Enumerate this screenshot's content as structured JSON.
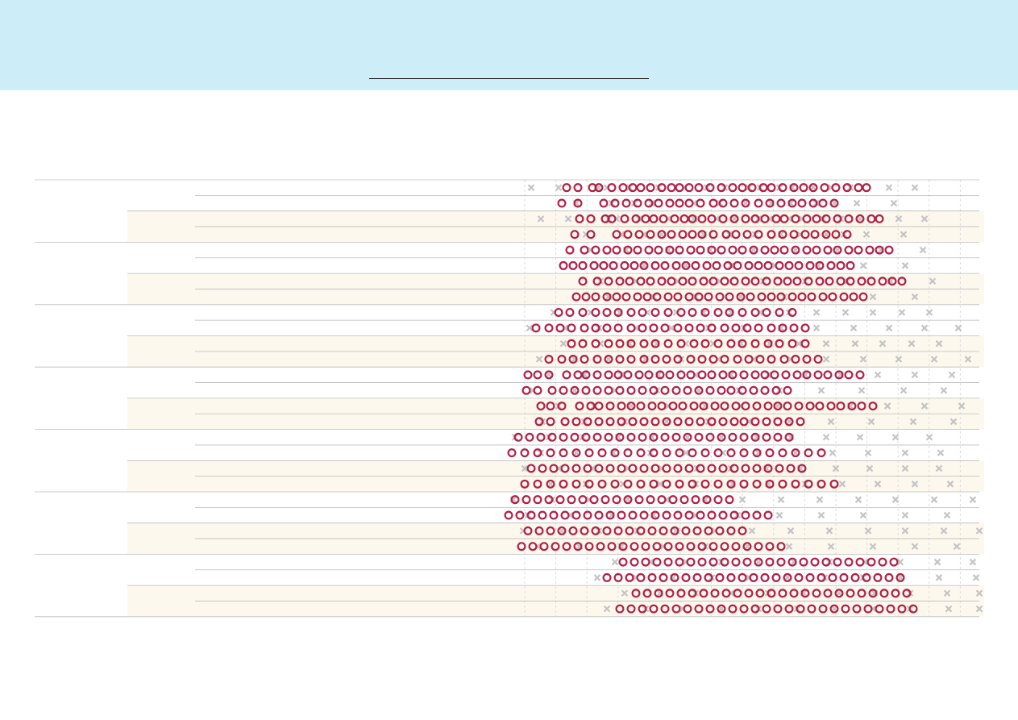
{
  "banner": {
    "title": "",
    "accent": "#cdeef9"
  },
  "chart_data": {
    "type": "scatter",
    "title": "",
    "xlabel": "",
    "ylabel": "",
    "grid": true,
    "legend": "none",
    "colors": {
      "highlight": "#b21f45",
      "background_points": "#c4c4c4",
      "band": "#fdf8ee",
      "rule": "#bbbbbb"
    },
    "xlim": [
      0,
      30
    ],
    "groups": [
      {
        "rows": [
          {
            "background": [
              2.2,
              3.9,
              6.4,
              6.9,
              8.3,
              10.1,
              11.7,
              13.1,
              14.2,
              15.7,
              16.4,
              17.6,
              18.4,
              19.7,
              20.8,
              22.0,
              24.4,
              26.0
            ],
            "highlight": [
              4.4,
              5.1,
              6.0,
              6.4,
              7.2,
              7.9,
              8.5,
              9.0,
              9.6,
              10.3,
              10.9,
              11.4,
              12.0,
              12.6,
              13.3,
              14.0,
              14.7,
              15.3,
              15.9,
              16.6,
              17.1,
              17.8,
              18.5,
              19.1,
              19.7,
              20.4,
              21.1,
              21.8,
              22.5,
              23.0
            ]
          },
          {
            "background": [
              5.0,
              7.2,
              8.6,
              9.7,
              12.3,
              13.9,
              15.5,
              17.1,
              18.3,
              19.9,
              21.0,
              22.4,
              24.7
            ],
            "highlight": [
              4.1,
              5.1,
              6.7,
              7.4,
              8.1,
              8.8,
              9.5,
              10.1,
              10.8,
              11.4,
              12.0,
              12.7,
              13.5,
              14.1,
              14.8,
              15.5,
              16.3,
              17.0,
              17.7,
              18.4,
              19.0,
              19.7,
              20.3,
              21.0
            ]
          }
        ]
      },
      {
        "rows": [
          {
            "background": [
              5.9,
              8.1,
              10.7,
              13.3,
              16.0,
              18.6,
              21.2,
              23.9,
              26.5
            ],
            "highlight": [
              4.6,
              5.5,
              6.2,
              6.9,
              7.5,
              8.2,
              8.8,
              9.5,
              10.1,
              10.8,
              11.4,
              12.1,
              12.7,
              13.4,
              14.0,
              14.7,
              15.3,
              16.0,
              16.7,
              17.3,
              17.9,
              18.6,
              19.3,
              19.9,
              20.6,
              21.2,
              21.9,
              22.5,
              23.2,
              23.8,
              24.4
            ]
          },
          {
            "background": [
              6.4,
              9.2,
              11.8,
              14.6,
              17.3,
              20.0,
              22.8,
              25.4
            ],
            "highlight": [
              4.2,
              4.8,
              5.4,
              6.1,
              6.7,
              7.3,
              8.0,
              8.6,
              9.2,
              9.9,
              10.5,
              11.2,
              11.8,
              12.4,
              13.1,
              13.7,
              14.4,
              15.0,
              15.7,
              16.3,
              16.9,
              17.6,
              18.2,
              18.8,
              19.5,
              20.1,
              20.8,
              21.4,
              22.0
            ]
          }
        ]
      },
      {
        "rows": [
          {
            "background": [
              3.6,
              5.9,
              7.7,
              9.4,
              11.2,
              12.9,
              14.6,
              16.4,
              18.2,
              19.9,
              21.7,
              23.4,
              25.2,
              26.9
            ],
            "highlight": [
              3.9,
              4.6,
              5.4,
              6.2,
              6.9,
              7.6,
              8.4,
              9.1,
              9.9,
              10.7,
              11.5,
              12.2,
              13.0,
              13.8,
              14.5,
              15.3,
              16.1,
              16.8,
              17.6,
              18.4
            ]
          },
          {
            "background": [
              2.1,
              4.3,
              6.4,
              8.7,
              10.9,
              13.2,
              15.4,
              17.7,
              19.9,
              22.2,
              24.4,
              26.6,
              28.7
            ],
            "highlight": [
              2.5,
              3.3,
              4.0,
              4.7,
              5.5,
              6.2,
              6.9,
              7.6,
              8.4,
              9.1,
              9.8,
              10.5,
              11.3,
              12.0,
              12.7,
              13.4,
              14.2,
              14.9,
              15.6,
              16.3,
              17.1,
              17.8,
              18.5,
              19.2
            ]
          }
        ]
      },
      {
        "rows": [
          {
            "background": [
              3.3,
              5.5,
              7.8,
              10.1,
              12.4,
              14.6,
              16.9,
              19.2,
              21.4,
              23.7,
              26.0,
              28.3
            ],
            "highlight": [
              2.0,
              2.6,
              3.3,
              4.4,
              5.1,
              5.6,
              6.3,
              7.0,
              7.6,
              8.2,
              8.9,
              9.5,
              10.2,
              10.8,
              11.5,
              12.1,
              12.8,
              13.4,
              14.1,
              14.7,
              15.4,
              16.1,
              16.7,
              17.3,
              18.0,
              18.7,
              19.3,
              20.0,
              20.6,
              21.3,
              21.9,
              22.6
            ]
          },
          {
            "background": [
              2.3,
              4.9,
              7.4,
              10.0,
              12.6,
              15.1,
              17.6,
              20.2,
              22.7,
              25.3,
              27.8
            ],
            "highlight": [
              1.9,
              2.6,
              3.5,
              4.2,
              4.9,
              5.6,
              6.3,
              7.0,
              7.7,
              8.4,
              9.1,
              9.8,
              10.5,
              11.2,
              11.9,
              12.6,
              13.3,
              14.0,
              14.6,
              15.3,
              16.0,
              16.7,
              17.4,
              18.1
            ]
          }
        ]
      },
      {
        "rows": [
          {
            "background": [
              1.2,
              3.3,
              5.4,
              7.6,
              9.7,
              11.9,
              14.0,
              16.2,
              18.3,
              20.5,
              22.6,
              24.8,
              26.9
            ],
            "highlight": [
              1.4,
              2.1,
              2.8,
              3.5,
              4.2,
              4.9,
              5.6,
              6.3,
              7.0,
              7.7,
              8.4,
              9.1,
              9.8,
              10.5,
              11.2,
              11.9,
              12.6,
              13.3,
              14.0,
              14.7,
              15.4,
              16.1,
              16.8,
              17.5,
              18.2
            ]
          },
          {
            "background": [
              2.8,
              5.0,
              7.3,
              9.6,
              11.8,
              14.1,
              16.3,
              18.6,
              20.9,
              23.1,
              25.4,
              27.6
            ],
            "highlight": [
              1.0,
              1.8,
              2.6,
              3.4,
              4.2,
              5.0,
              5.8,
              6.6,
              7.4,
              8.2,
              9.0,
              9.8,
              10.6,
              11.4,
              12.2,
              13.0,
              13.8,
              14.6,
              15.4,
              16.2,
              17.0,
              17.8,
              18.6,
              19.4,
              20.2
            ]
          }
        ]
      },
      {
        "rows": [
          {
            "background": [
              1.1,
              3.5,
              5.8,
              8.2,
              10.6,
              13.0,
              15.3,
              17.7,
              20.1,
              22.5,
              24.8,
              27.2,
              29.6
            ],
            "highlight": [
              1.2,
              1.9,
              2.6,
              3.3,
              4.0,
              4.7,
              5.4,
              6.1,
              6.8,
              7.5,
              8.2,
              8.9,
              9.6,
              10.3,
              11.0,
              11.7,
              12.4,
              13.1,
              13.8,
              14.5
            ]
          },
          {
            "background": [
              2.0,
              4.6,
              7.2,
              9.8,
              12.4,
              15.0,
              17.6,
              20.2,
              22.8,
              25.4,
              28.0
            ],
            "highlight": [
              0.8,
              1.5,
              2.2,
              2.9,
              3.6,
              4.3,
              5.0,
              5.7,
              6.4,
              7.1,
              7.8,
              8.5,
              9.2,
              9.9,
              10.6,
              11.3,
              12.0,
              12.7,
              13.4,
              14.1,
              14.8,
              15.5,
              16.2,
              16.9
            ]
          }
        ]
      },
      {
        "rows": [
          {
            "background": [
              7.4,
              9.6,
              11.8,
              14.0,
              16.3,
              18.5,
              20.7,
              22.9,
              25.1,
              27.4,
              29.6
            ],
            "highlight": [
              7.9,
              8.6,
              9.3,
              10.0,
              10.7,
              11.4,
              12.1,
              12.8,
              13.5,
              14.2,
              14.9,
              15.6,
              16.3,
              17.0,
              17.7,
              18.4,
              19.1,
              19.8,
              20.5,
              21.2,
              21.9,
              22.6,
              23.3,
              24.0,
              24.7
            ]
          },
          {
            "background": [
              6.3,
              8.7,
              11.0,
              13.4,
              15.7,
              18.1,
              20.4,
              22.8,
              25.1,
              27.5,
              29.8
            ],
            "highlight": [
              6.9,
              7.6,
              8.3,
              9.0,
              9.7,
              10.4,
              11.1,
              11.8,
              12.5,
              13.2,
              13.9,
              14.6,
              15.3,
              16.0,
              16.7,
              17.4,
              18.1,
              18.8,
              19.5,
              20.2,
              20.9,
              21.6,
              22.3,
              23.0,
              23.7,
              24.4,
              25.1
            ]
          }
        ]
      }
    ]
  }
}
